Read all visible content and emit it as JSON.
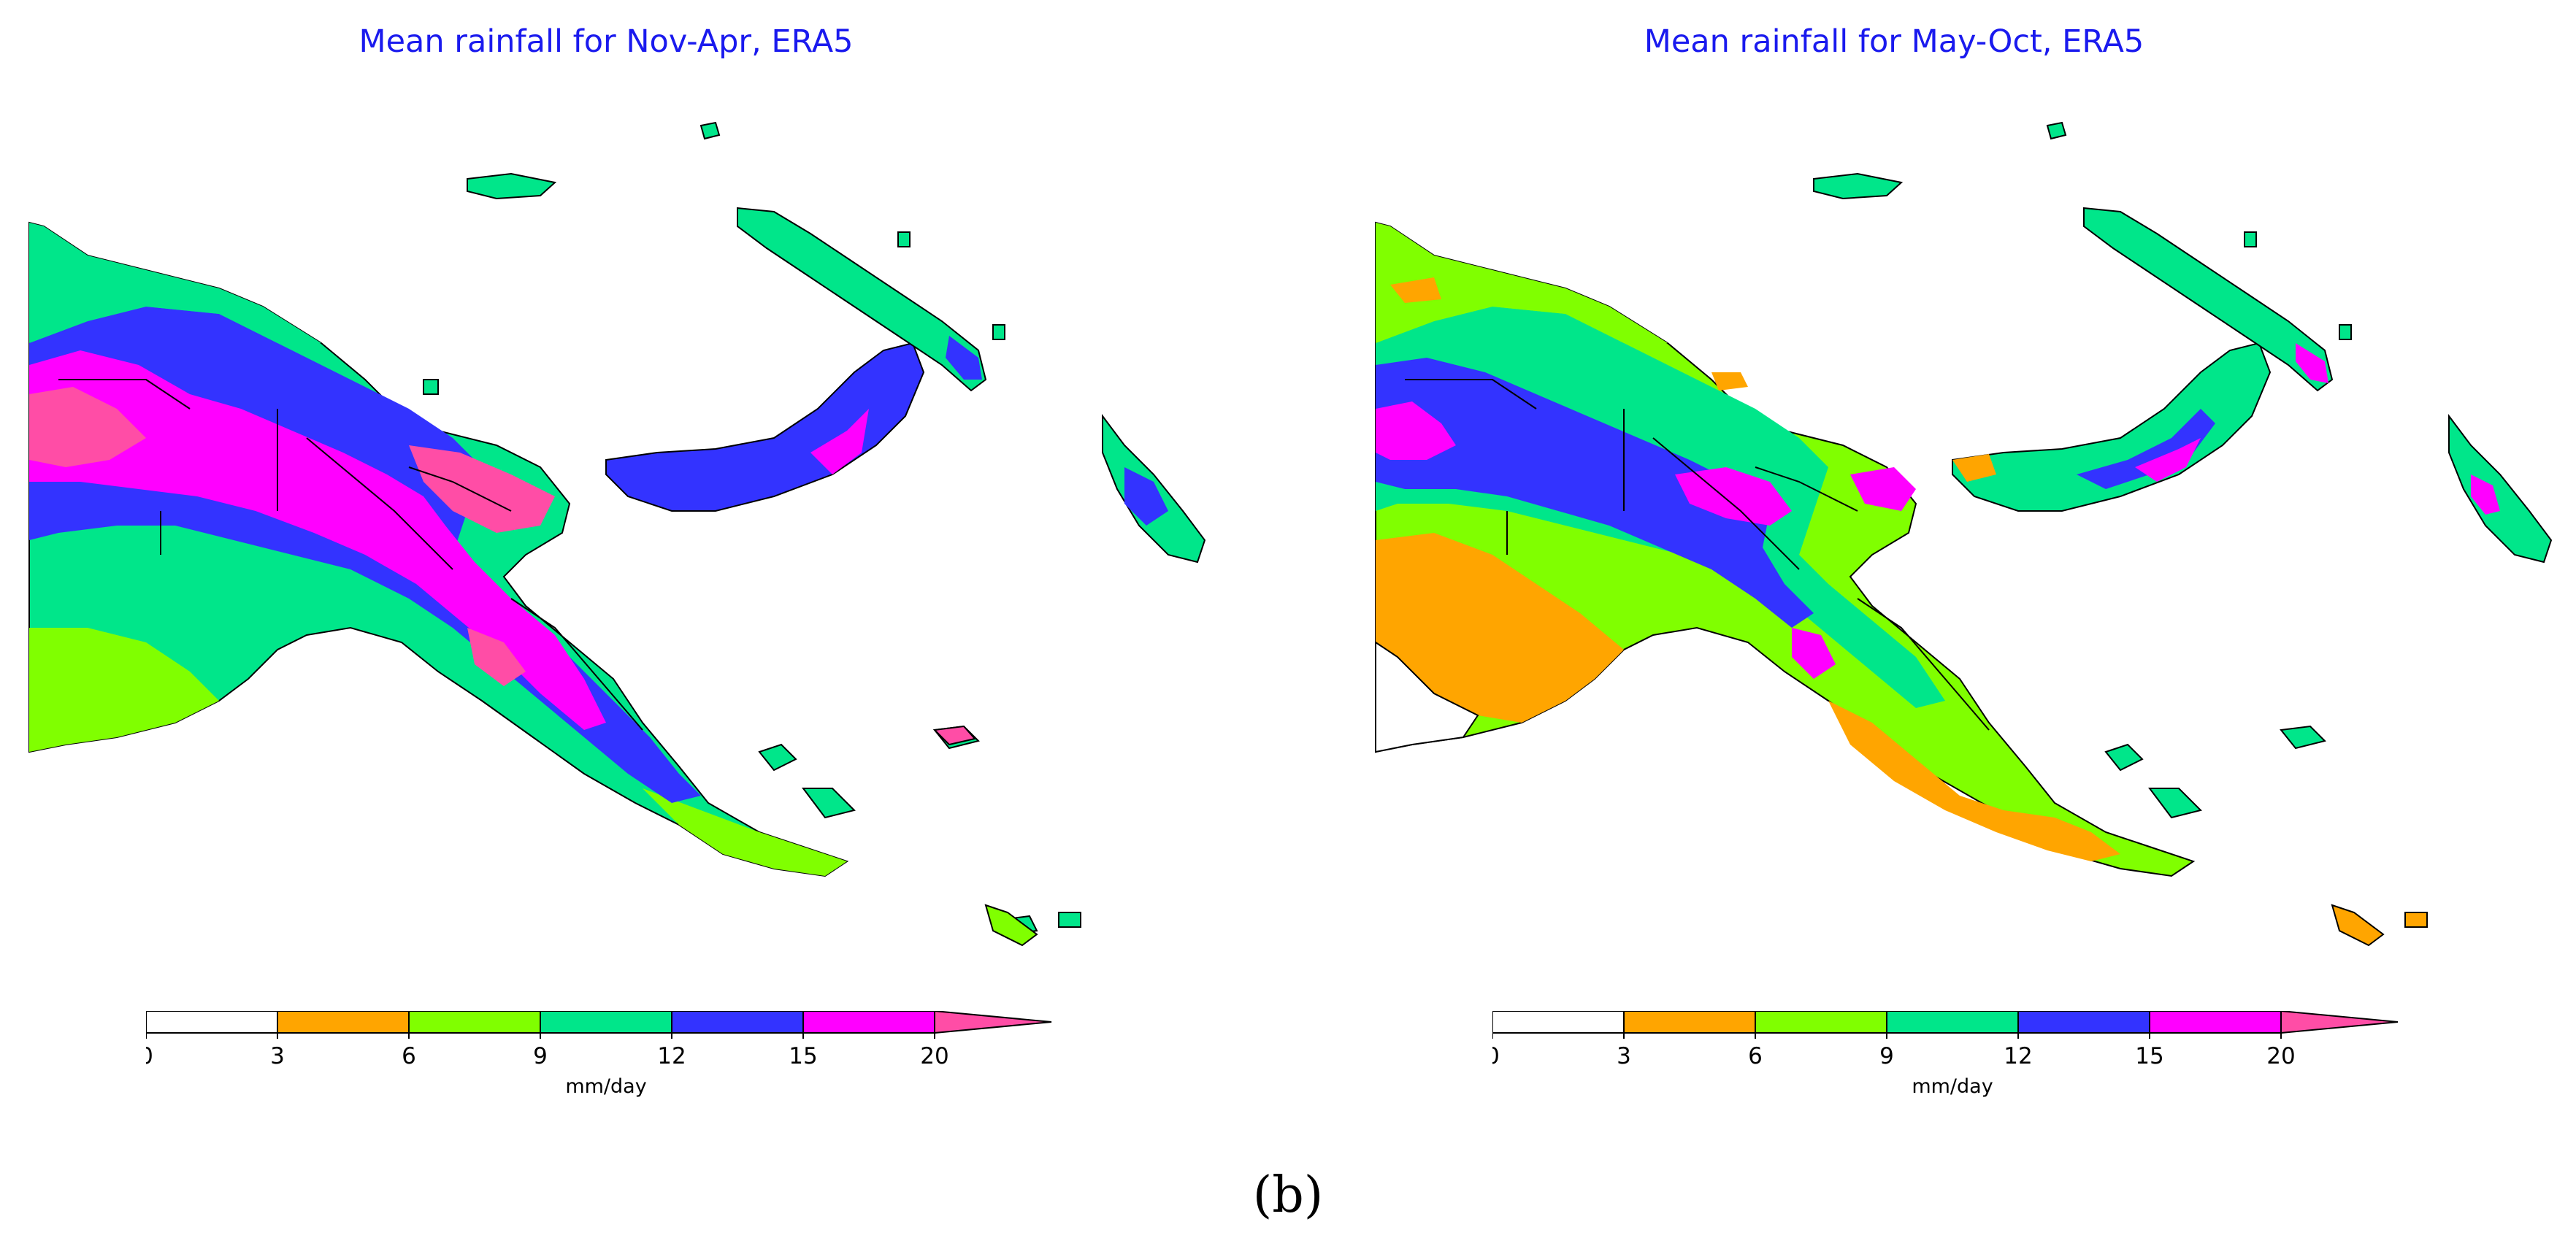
{
  "figure": {
    "sub_label": "(b)"
  },
  "legend": {
    "unit": "mm/day",
    "ticks": [
      "0",
      "3",
      "6",
      "9",
      "12",
      "15",
      "20"
    ],
    "bins": [
      {
        "range": "0-3",
        "color": "#ffffff"
      },
      {
        "range": "3-6",
        "color": "#ffa500"
      },
      {
        "range": "6-9",
        "color": "#80ff00"
      },
      {
        "range": "9-12",
        "color": "#00e68a"
      },
      {
        "range": "12-15",
        "color": "#3333ff"
      },
      {
        "range": "15-20",
        "color": "#ff00ff"
      },
      {
        "range": ">20",
        "color": "#ff4da6"
      }
    ]
  },
  "panels": [
    {
      "id": "nov-apr",
      "title": "Mean rainfall for Nov-Apr, ERA5",
      "dominant_band": "wet",
      "colors": {
        "west_south": "#00e68a",
        "lowland": "#80ff00",
        "highland": "#3333ff",
        "peak": "#ff00ff",
        "extreme": "#ff4da6",
        "coast": "#00e68a"
      }
    },
    {
      "id": "may-oct",
      "title": "Mean rainfall for May-Oct, ERA5",
      "dominant_band": "dry",
      "colors": {
        "west_south": "#ffa500",
        "lowland": "#80ff00",
        "highland": "#00e68a",
        "peak": "#3333ff",
        "extreme": "#ff00ff",
        "coast": "#80ff00"
      }
    }
  ]
}
